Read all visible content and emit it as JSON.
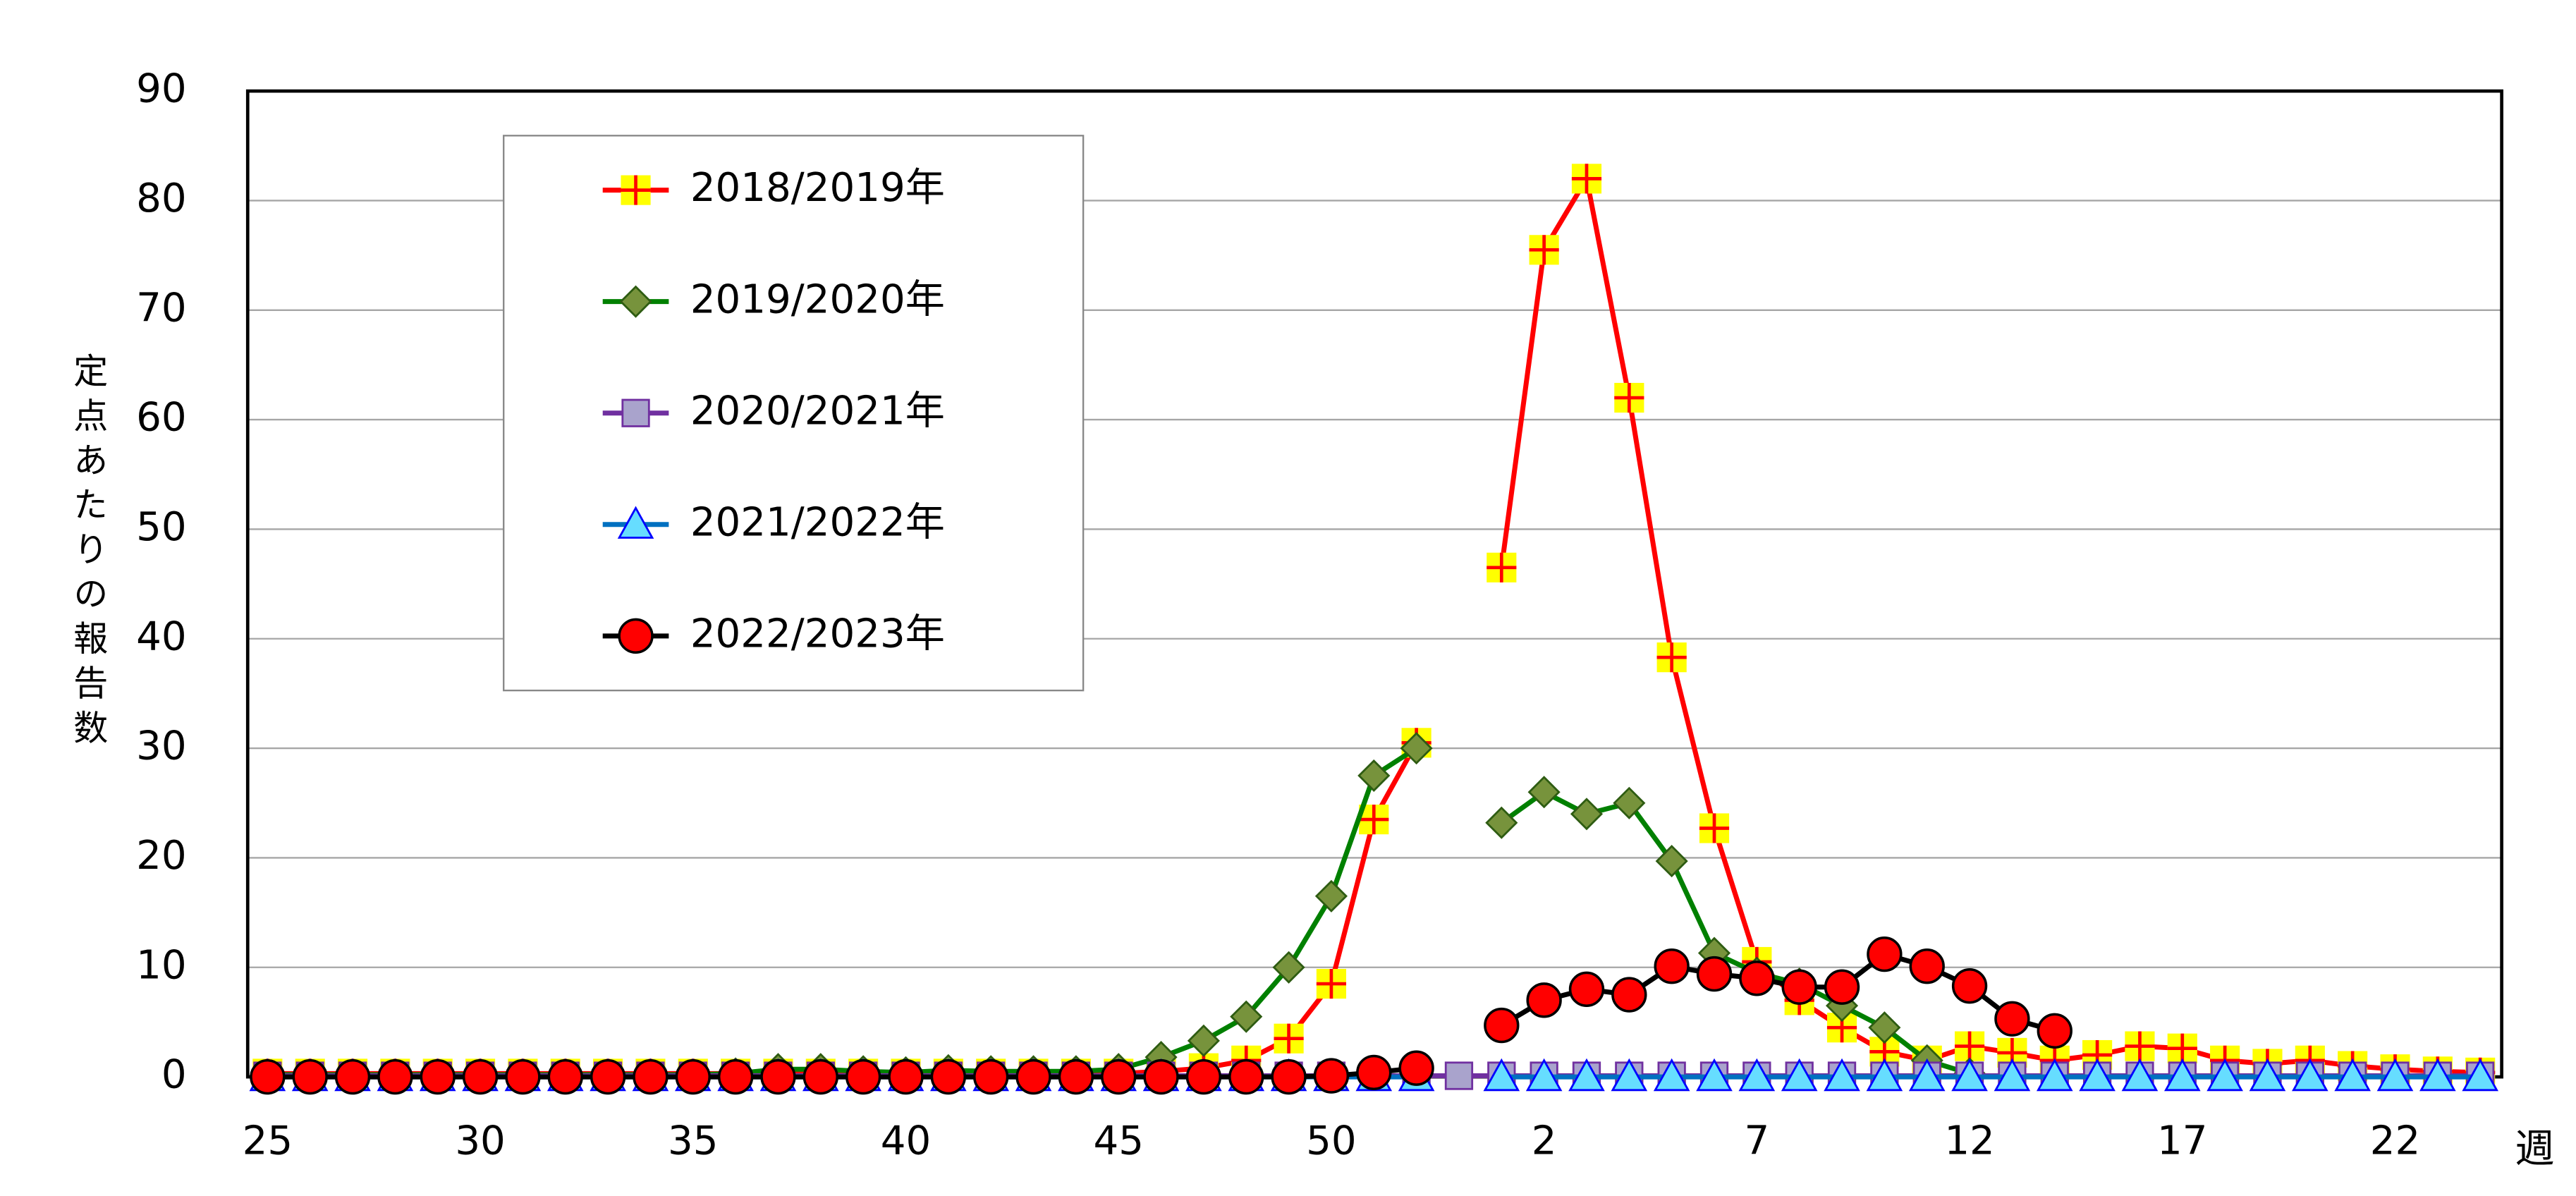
{
  "chart_data": {
    "type": "line",
    "ylabel": "定点あたりの報告数",
    "xlabel": "週",
    "categories": [
      "25",
      null,
      null,
      null,
      null,
      "30",
      null,
      null,
      null,
      null,
      "35",
      null,
      null,
      null,
      null,
      "40",
      null,
      null,
      null,
      null,
      "45",
      null,
      null,
      null,
      null,
      "50",
      null,
      null,
      null,
      null,
      "2",
      null,
      null,
      null,
      null,
      "7",
      null,
      null,
      null,
      null,
      "12",
      null,
      null,
      null,
      null,
      "17",
      null,
      null,
      null,
      null,
      "22",
      null,
      null
    ],
    "ylim": [
      0,
      90
    ],
    "yticks": [
      0,
      10,
      20,
      30,
      40,
      50,
      60,
      70,
      80,
      90
    ],
    "grid": true,
    "legend": "upper left",
    "series": [
      {
        "name": "2018/2019年",
        "color": "#ff0000",
        "marker": "plus-square",
        "values": [
          0.3,
          0.3,
          0.3,
          0.3,
          0.3,
          0.3,
          0.3,
          0.3,
          0.3,
          0.3,
          0.3,
          0.3,
          0.3,
          0.3,
          0.3,
          0.3,
          0.3,
          0.3,
          0.3,
          0.3,
          0.3,
          0.5,
          0.8,
          1.5,
          3.5,
          8.5,
          23.5,
          30.5,
          null,
          46.5,
          75.5,
          82,
          62,
          38.3,
          22.7,
          10.5,
          7,
          4.5,
          2.3,
          1.5,
          2.8,
          2.2,
          1.5,
          2,
          2.8,
          2.6,
          1.5,
          1.2,
          1.5,
          1,
          0.7,
          0.5,
          0.4
        ]
      },
      {
        "name": "2019/2020年",
        "color": "#008000",
        "marker": "diamond",
        "values": [
          0.2,
          0.2,
          0.2,
          0.2,
          0.2,
          0.2,
          0.2,
          0.2,
          0.2,
          0.2,
          0.2,
          0.3,
          0.7,
          0.7,
          0.5,
          0.4,
          0.6,
          0.5,
          0.5,
          0.5,
          0.7,
          1.8,
          3.3,
          5.5,
          10,
          16.5,
          27.5,
          30,
          null,
          23.2,
          26,
          24,
          25,
          19.7,
          11.3,
          9.5,
          8.5,
          6.5,
          4.5,
          1.5,
          0.3,
          null,
          null,
          null,
          null,
          null,
          null,
          null,
          null,
          null,
          null,
          null,
          null
        ]
      },
      {
        "name": "2020/2021年",
        "color": "#7030a0",
        "marker": "square",
        "values": [
          0.1,
          0.1,
          0.1,
          0.1,
          0.1,
          0.1,
          0.1,
          0.1,
          0.1,
          0.1,
          0.1,
          0.1,
          0.1,
          0.1,
          0.1,
          0.1,
          0.1,
          0.1,
          0.1,
          0.1,
          0.1,
          0.1,
          0.1,
          0.1,
          0.1,
          0.1,
          0.1,
          0.1,
          0.1,
          0.1,
          0.1,
          0.1,
          0.1,
          0.1,
          0.1,
          0.1,
          0.1,
          0.1,
          0.1,
          0.1,
          0.1,
          0.1,
          0.1,
          0.1,
          0.1,
          0.1,
          0.1,
          0.1,
          0.1,
          0.1,
          0.1,
          0.1,
          0.1
        ]
      },
      {
        "name": "2021/2022年",
        "color": "#0070c0",
        "marker": "triangle",
        "values": [
          0,
          0,
          0,
          0,
          0,
          0,
          0,
          0,
          0,
          0,
          0,
          0,
          0,
          0,
          0,
          0,
          0,
          0,
          0,
          0,
          0,
          0,
          0,
          0,
          0,
          0,
          0,
          0,
          null,
          0,
          0,
          0,
          0,
          0,
          0,
          0,
          0,
          0,
          0,
          0,
          0,
          0,
          0,
          0,
          0,
          0,
          0,
          0,
          0,
          0,
          0,
          0,
          0
        ]
      },
      {
        "name": "2022/2023年",
        "color": "#000000",
        "marker": "circle",
        "values": [
          0,
          0,
          0,
          0,
          0,
          0,
          0,
          0,
          0,
          0,
          0,
          0,
          0,
          0,
          0,
          0,
          0,
          0,
          0,
          0,
          0,
          0,
          0,
          0,
          0,
          0.1,
          0.4,
          0.8,
          null,
          4.7,
          7,
          8,
          7.5,
          10.1,
          9.4,
          9,
          8.2,
          8.2,
          11.2,
          10.1,
          8.3,
          5.3,
          4.2,
          null,
          null,
          null,
          null,
          null,
          null,
          null,
          null,
          null,
          null
        ]
      }
    ]
  }
}
